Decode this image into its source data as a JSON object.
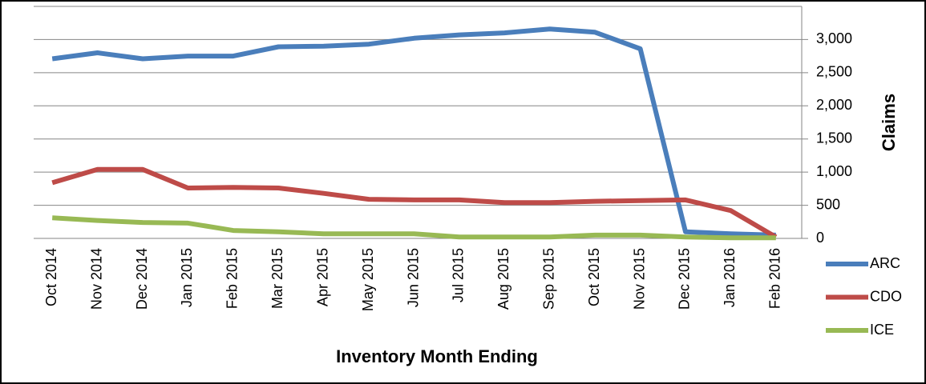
{
  "chart_data": {
    "type": "line",
    "x_label": "Inventory Month Ending",
    "y_label": "Claims",
    "categories": [
      "Oct 2014",
      "Nov 2014",
      "Dec 2014",
      "Jan 2015",
      "Feb 2015",
      "Mar 2015",
      "Apr 2015",
      "May 2015",
      "Jun 2015",
      "Jul 2015",
      "Aug 2015",
      "Sep 2015",
      "Oct 2015",
      "Nov 2015",
      "Dec 2015",
      "Jan 2016",
      "Feb 2016"
    ],
    "series": [
      {
        "name": "ARC",
        "color": "#4a7ebb",
        "values": [
          2710,
          2800,
          2710,
          2750,
          2750,
          2890,
          2900,
          2930,
          3020,
          3070,
          3100,
          3160,
          3110,
          2860,
          100,
          70,
          50
        ]
      },
      {
        "name": "CDO",
        "color": "#be4b48",
        "values": [
          840,
          1040,
          1040,
          760,
          770,
          760,
          680,
          590,
          580,
          580,
          540,
          540,
          560,
          570,
          580,
          420,
          20
        ]
      },
      {
        "name": "ICE",
        "color": "#98b954",
        "values": [
          310,
          270,
          240,
          230,
          120,
          100,
          70,
          70,
          70,
          20,
          20,
          20,
          50,
          50,
          20,
          10,
          10
        ]
      }
    ],
    "ylim": [
      0,
      3500
    ],
    "yticks": [
      0,
      500,
      {
        "value": 1000,
        "label": "1,000"
      },
      {
        "value": 1500,
        "label": "1,500"
      },
      {
        "value": 2000,
        "label": "2,000"
      },
      {
        "value": 2500,
        "label": "2,500"
      },
      {
        "value": 3000,
        "label": "3,000"
      }
    ],
    "grid": true,
    "legend": "right"
  }
}
